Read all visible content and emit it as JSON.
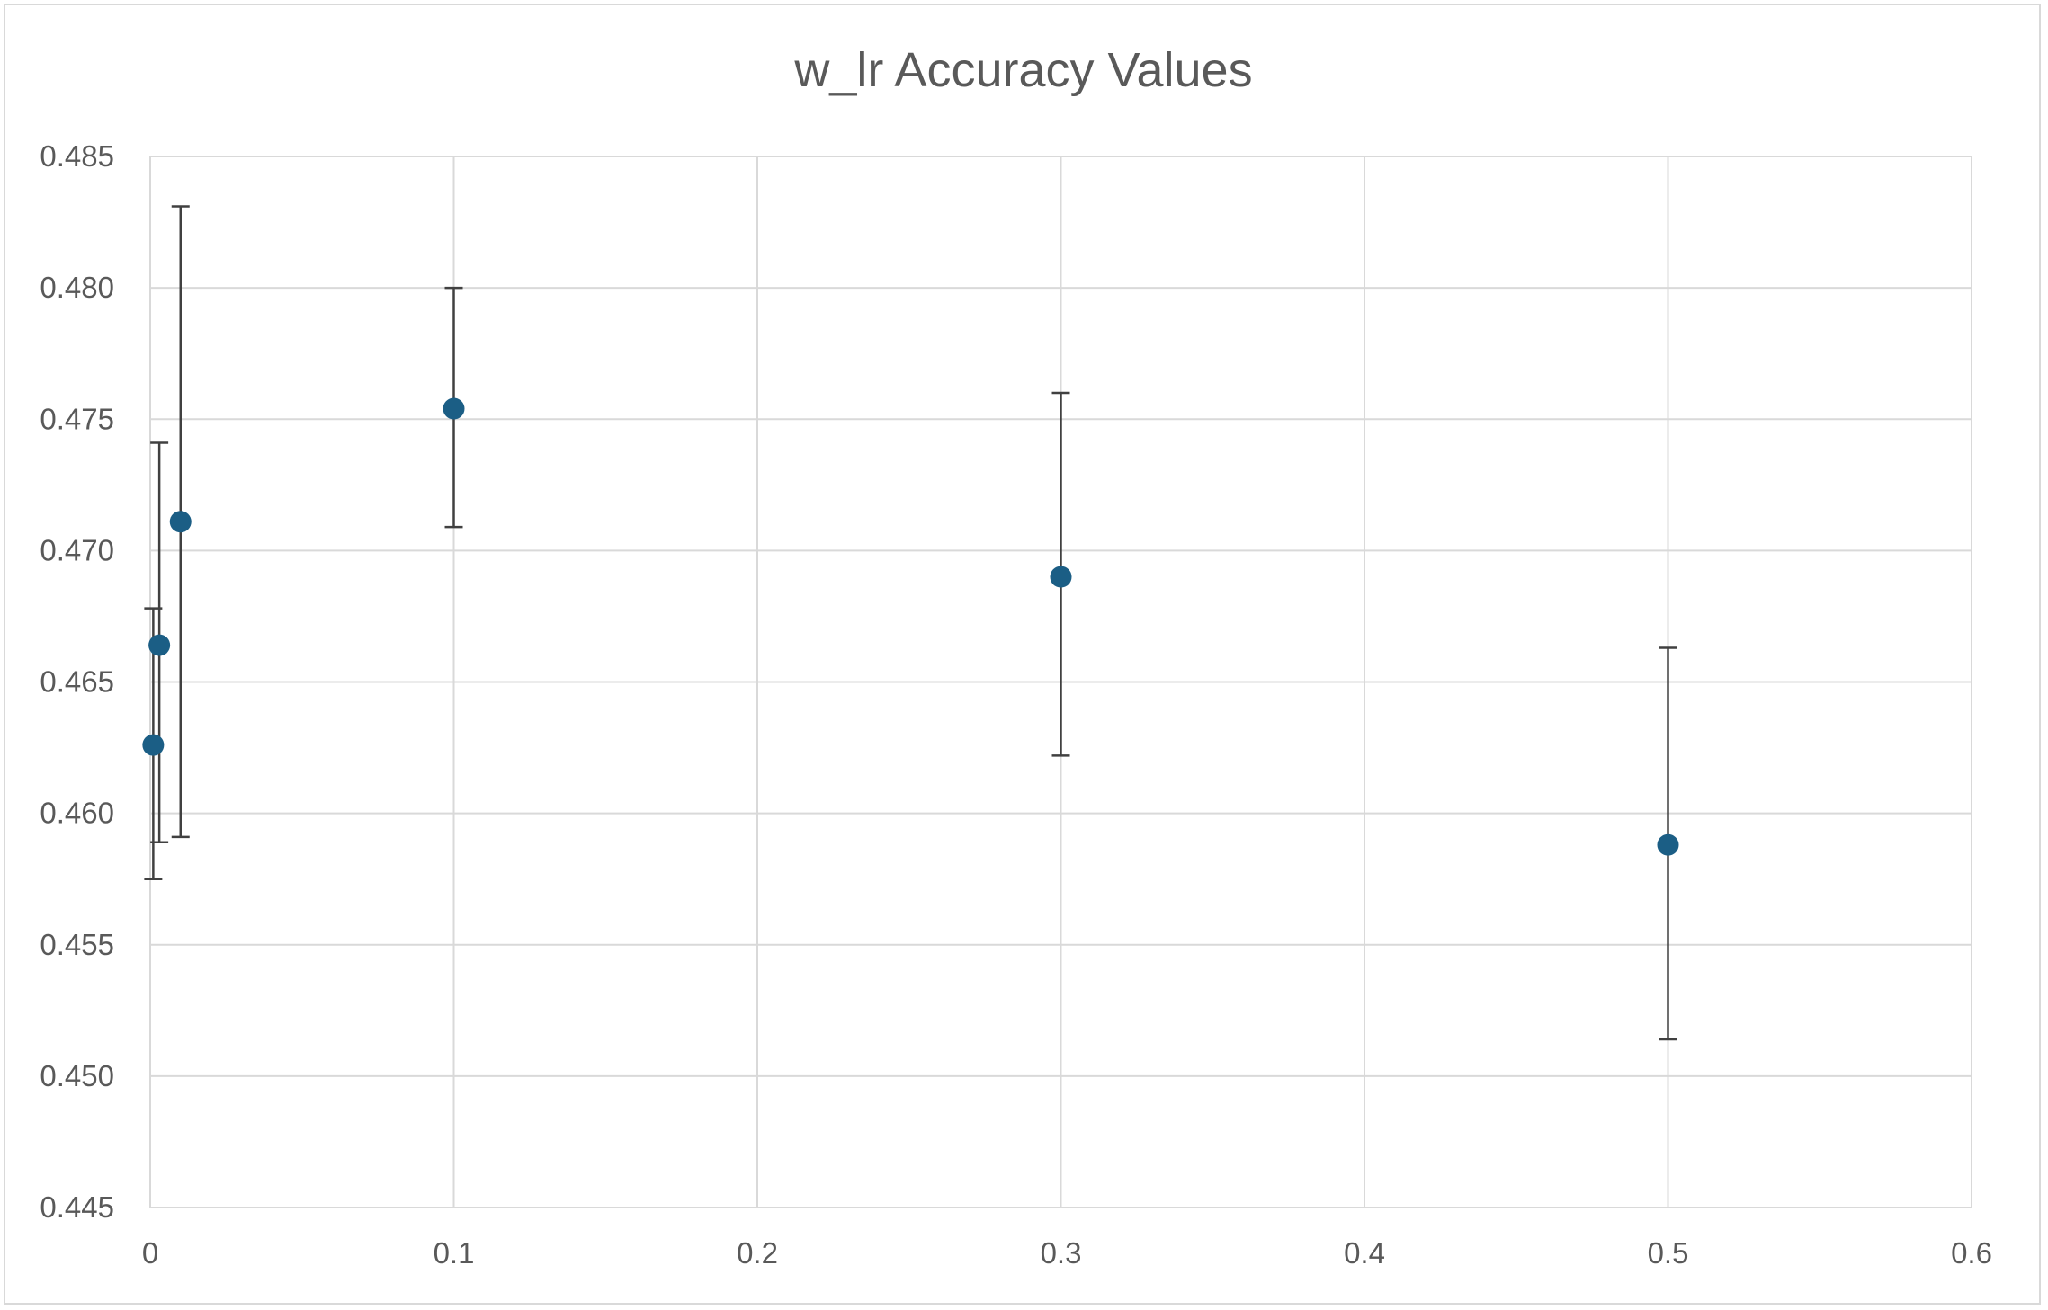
{
  "chart_data": {
    "type": "scatter",
    "title": "w_lr Accuracy Values",
    "xlabel": "",
    "ylabel": "",
    "xlim": [
      0,
      0.6
    ],
    "ylim": [
      0.445,
      0.485
    ],
    "x_ticks": [
      "0",
      "0.1",
      "0.2",
      "0.3",
      "0.4",
      "0.5",
      "0.6"
    ],
    "y_ticks": [
      "0.445",
      "0.450",
      "0.455",
      "0.460",
      "0.465",
      "0.470",
      "0.475",
      "0.480",
      "0.485"
    ],
    "grid": true,
    "legend": "none",
    "points": [
      {
        "x": 0.001,
        "y": 0.4626,
        "err_low": 0.4575,
        "err_high": 0.4678
      },
      {
        "x": 0.003,
        "y": 0.4664,
        "err_low": 0.4589,
        "err_high": 0.4741
      },
      {
        "x": 0.01,
        "y": 0.4711,
        "err_low": 0.4591,
        "err_high": 0.4831
      },
      {
        "x": 0.1,
        "y": 0.4754,
        "err_low": 0.4709,
        "err_high": 0.48
      },
      {
        "x": 0.3,
        "y": 0.469,
        "err_low": 0.4622,
        "err_high": 0.476
      },
      {
        "x": 0.5,
        "y": 0.4588,
        "err_low": 0.4514,
        "err_high": 0.4663
      }
    ],
    "colors": {
      "marker": "#1b5e85",
      "error_bar": "#404040",
      "grid": "#d9d9d9",
      "text": "#595959"
    }
  }
}
